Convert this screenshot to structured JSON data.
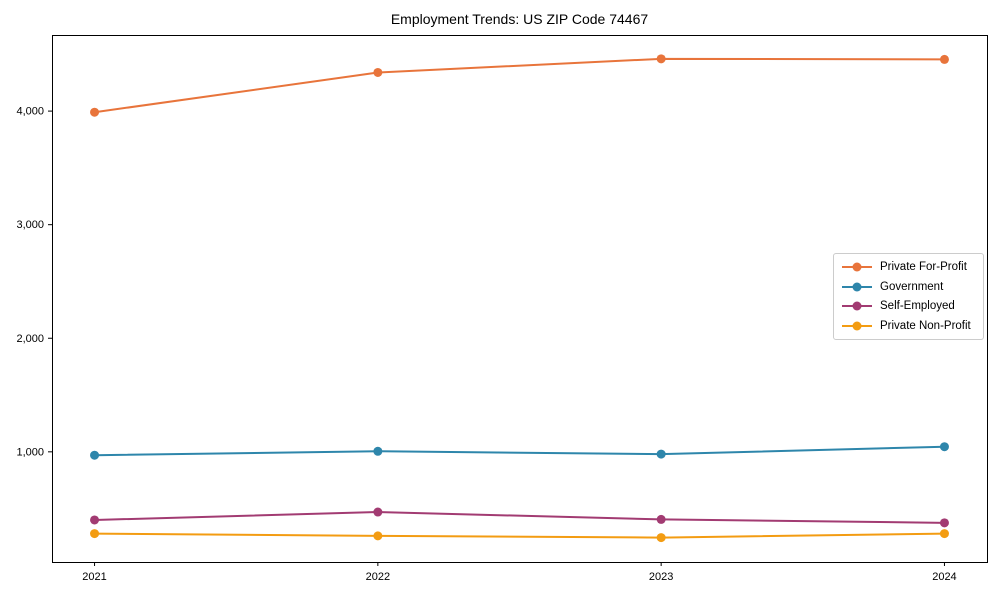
{
  "chart_data": {
    "type": "line",
    "title": "Employment Trends: US ZIP Code 74467",
    "xlabel": "",
    "ylabel": "",
    "x": [
      "2021",
      "2022",
      "2023",
      "2024"
    ],
    "series": [
      {
        "name": "Private For-Profit",
        "color": "#E8743B",
        "values": [
          3990,
          4340,
          4460,
          4455
        ]
      },
      {
        "name": "Government",
        "color": "#2E86AB",
        "values": [
          970,
          1005,
          980,
          1045
        ]
      },
      {
        "name": "Self-Employed",
        "color": "#A23B72",
        "values": [
          400,
          470,
          405,
          375
        ]
      },
      {
        "name": "Private Non-Profit",
        "color": "#F39C12",
        "values": [
          280,
          260,
          245,
          280
        ]
      }
    ],
    "ylim": [
      30,
      4670
    ],
    "yticks": [
      1000,
      2000,
      3000,
      4000
    ],
    "ytick_labels": [
      "1,000",
      "2,000",
      "3,000",
      "4,000"
    ],
    "grid": false,
    "legend_position": "center-right",
    "marker": "circle",
    "axis_color": "#000000",
    "tick_label_color": "#000000"
  }
}
